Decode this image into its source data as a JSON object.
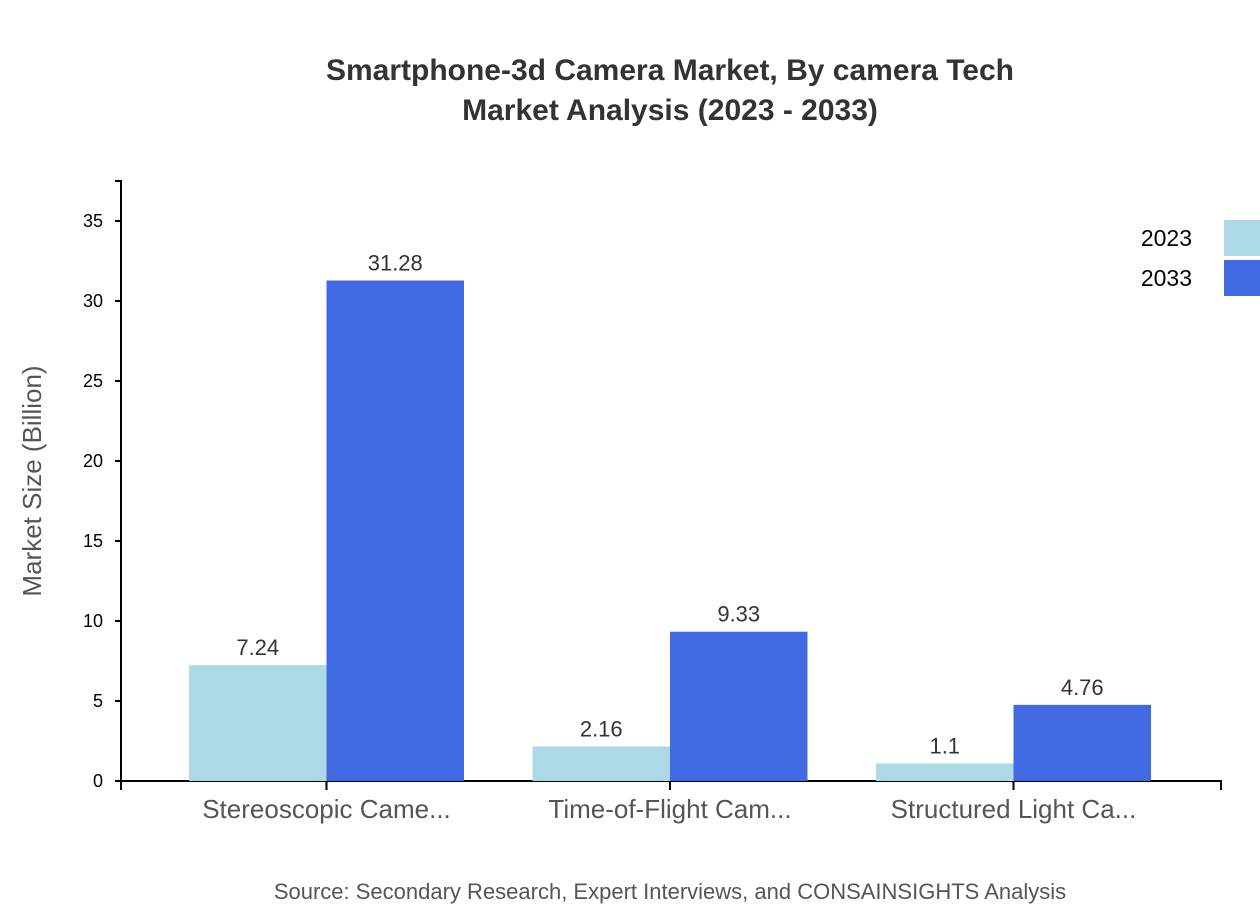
{
  "chart_data": {
    "type": "bar",
    "title": [
      "Smartphone-3d Camera Market, By camera Tech",
      "Market Analysis (2023 - 2033)"
    ],
    "xlabel": "",
    "ylabel": "Market Size (Billion)",
    "categories": [
      "Stereoscopic Came...",
      "Time-of-Flight Cam...",
      "Structured Light Ca..."
    ],
    "series": [
      {
        "name": "2023",
        "color": "#add8e6",
        "values": [
          7.24,
          2.16,
          1.1
        ]
      },
      {
        "name": "2033",
        "color": "#4169e1",
        "values": [
          31.28,
          9.33,
          4.76
        ]
      }
    ],
    "ylim": [
      0,
      37.5
    ],
    "yticks": [
      0,
      5,
      10,
      15,
      20,
      25,
      30,
      35
    ],
    "grid": false,
    "legend": "top-right",
    "source": "Source: Secondary Research, Expert Interviews, and CONSAINSIGHTS Analysis"
  }
}
